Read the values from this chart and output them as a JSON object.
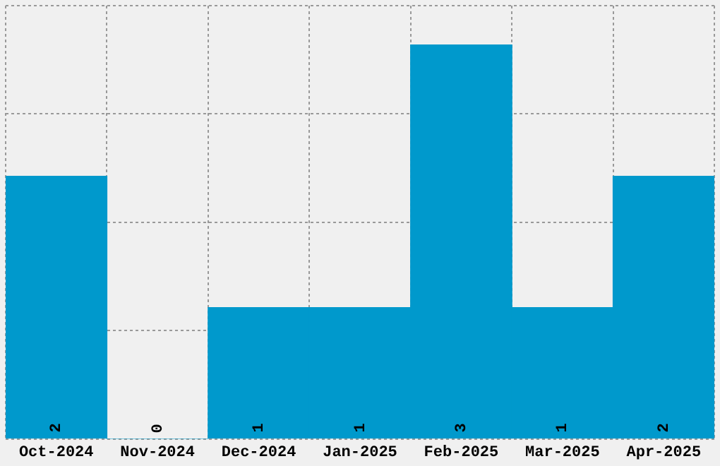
{
  "chart_data": {
    "type": "bar",
    "categories": [
      "Oct-2024",
      "Nov-2024",
      "Dec-2024",
      "Jan-2025",
      "Feb-2025",
      "Mar-2025",
      "Apr-2025"
    ],
    "values": [
      2,
      0,
      1,
      1,
      3,
      1,
      2
    ],
    "color": "#0099cc",
    "ylim": [
      0,
      3.3
    ],
    "yticks": [
      {
        "value": 0,
        "label": null
      },
      {
        "value": 0.825,
        "label": null
      },
      {
        "value": 1.65,
        "label": null
      },
      {
        "value": 2.475,
        "label": null
      },
      {
        "value": 3.3,
        "label": null
      }
    ],
    "grid": true,
    "tick_labels": "x",
    "data_labels": true
  }
}
